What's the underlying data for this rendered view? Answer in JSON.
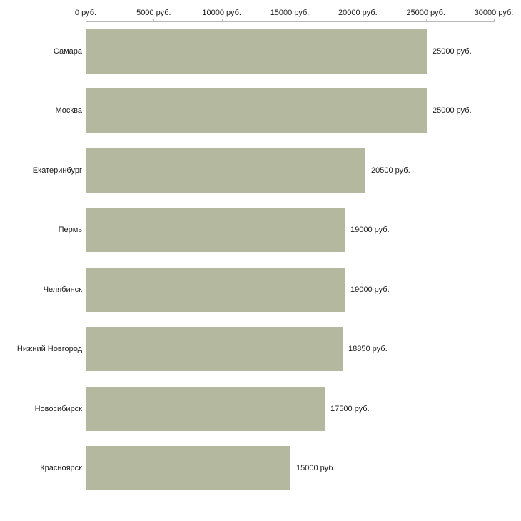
{
  "chart_data": {
    "type": "bar",
    "orientation": "horizontal",
    "title": "",
    "xlabel": "",
    "ylabel": "",
    "categories": [
      "Самара",
      "Москва",
      "Екатеринбург",
      "Пермь",
      "Челябинск",
      "Нижний Новгород",
      "Новосибирск",
      "Красноярск"
    ],
    "values": [
      25000,
      25000,
      20500,
      19000,
      19000,
      18850,
      17500,
      15000
    ],
    "value_labels": [
      "25000 руб.",
      "25000 руб.",
      "20500 руб.",
      "19000 руб.",
      "19000 руб.",
      "18850 руб.",
      "17500 руб.",
      "15000 руб."
    ],
    "x_ticks": [
      {
        "value": 0,
        "label": "0 руб."
      },
      {
        "value": 5000,
        "label": "5000 руб."
      },
      {
        "value": 10000,
        "label": "10000 руб."
      },
      {
        "value": 15000,
        "label": "15000 руб."
      },
      {
        "value": 20000,
        "label": "20000 руб."
      },
      {
        "value": 25000,
        "label": "25000 руб."
      },
      {
        "value": 30000,
        "label": "30000 руб."
      }
    ],
    "xlim": [
      0,
      30000
    ],
    "grid": false,
    "legend": false,
    "colors": {
      "bar_fill": "#b3b89e",
      "axis_line": "#b9b9b9",
      "text": "#1a1a1a",
      "background": "#ffffff"
    }
  }
}
